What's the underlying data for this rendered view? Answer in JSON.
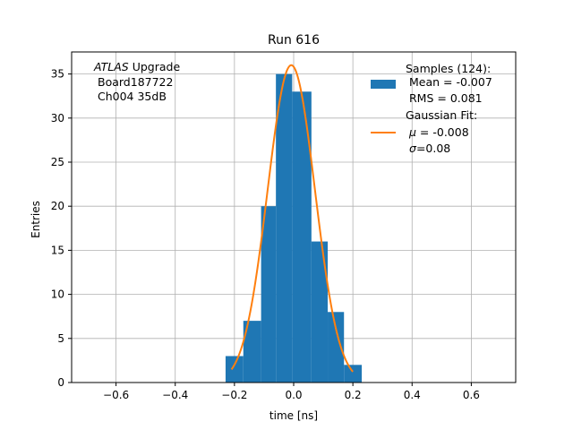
{
  "chart_data": {
    "type": "bar",
    "title": "Run 616",
    "xlabel": "time [ns]",
    "ylabel": "Entries",
    "xlim": [
      -0.75,
      0.75
    ],
    "ylim": [
      0,
      37.5
    ],
    "xticks": [
      -0.6,
      -0.4,
      -0.2,
      0.0,
      0.2,
      0.4,
      0.6
    ],
    "xtick_labels": [
      "−0.6",
      "−0.4",
      "−0.2",
      "0.0",
      "0.2",
      "0.4",
      "0.6"
    ],
    "yticks": [
      0,
      5,
      10,
      15,
      20,
      25,
      30,
      35
    ],
    "ytick_labels": [
      "0",
      "5",
      "10",
      "15",
      "20",
      "25",
      "30",
      "35"
    ],
    "grid": true,
    "annotation": {
      "experiment": "ATLAS",
      "line1_rest": " Upgrade",
      "line2": "Board187722",
      "line3": "Ch004 35dB"
    },
    "histogram": {
      "name": "Samples (124):",
      "color": "#1f77b4",
      "bins": [
        {
          "x0": -0.23,
          "x1": -0.17,
          "value": 3
        },
        {
          "x0": -0.17,
          "x1": -0.11,
          "value": 7
        },
        {
          "x0": -0.11,
          "x1": -0.06,
          "value": 20
        },
        {
          "x0": -0.06,
          "x1": -0.005,
          "value": 35
        },
        {
          "x0": -0.005,
          "x1": 0.06,
          "value": 33
        },
        {
          "x0": 0.06,
          "x1": 0.115,
          "value": 16
        },
        {
          "x0": 0.115,
          "x1": 0.17,
          "value": 8
        },
        {
          "x0": 0.17,
          "x1": 0.23,
          "value": 2
        }
      ]
    },
    "fit": {
      "name": "Gaussian Fit:",
      "color": "#ff7f0e",
      "amplitude": 36,
      "mu": -0.008,
      "sigma": 0.08,
      "x_range": [
        -0.21,
        0.2
      ]
    },
    "legend": {
      "placement": "top-right",
      "samples_label": "Samples (124):",
      "mean_label": "Mean = -0.007",
      "rms_label": "RMS = 0.081",
      "fit_label": "Gaussian Fit:",
      "mu_symbol": "μ",
      "mu_value": " = -0.008",
      "sigma_symbol": "σ",
      "sigma_value": "=0.08"
    }
  }
}
